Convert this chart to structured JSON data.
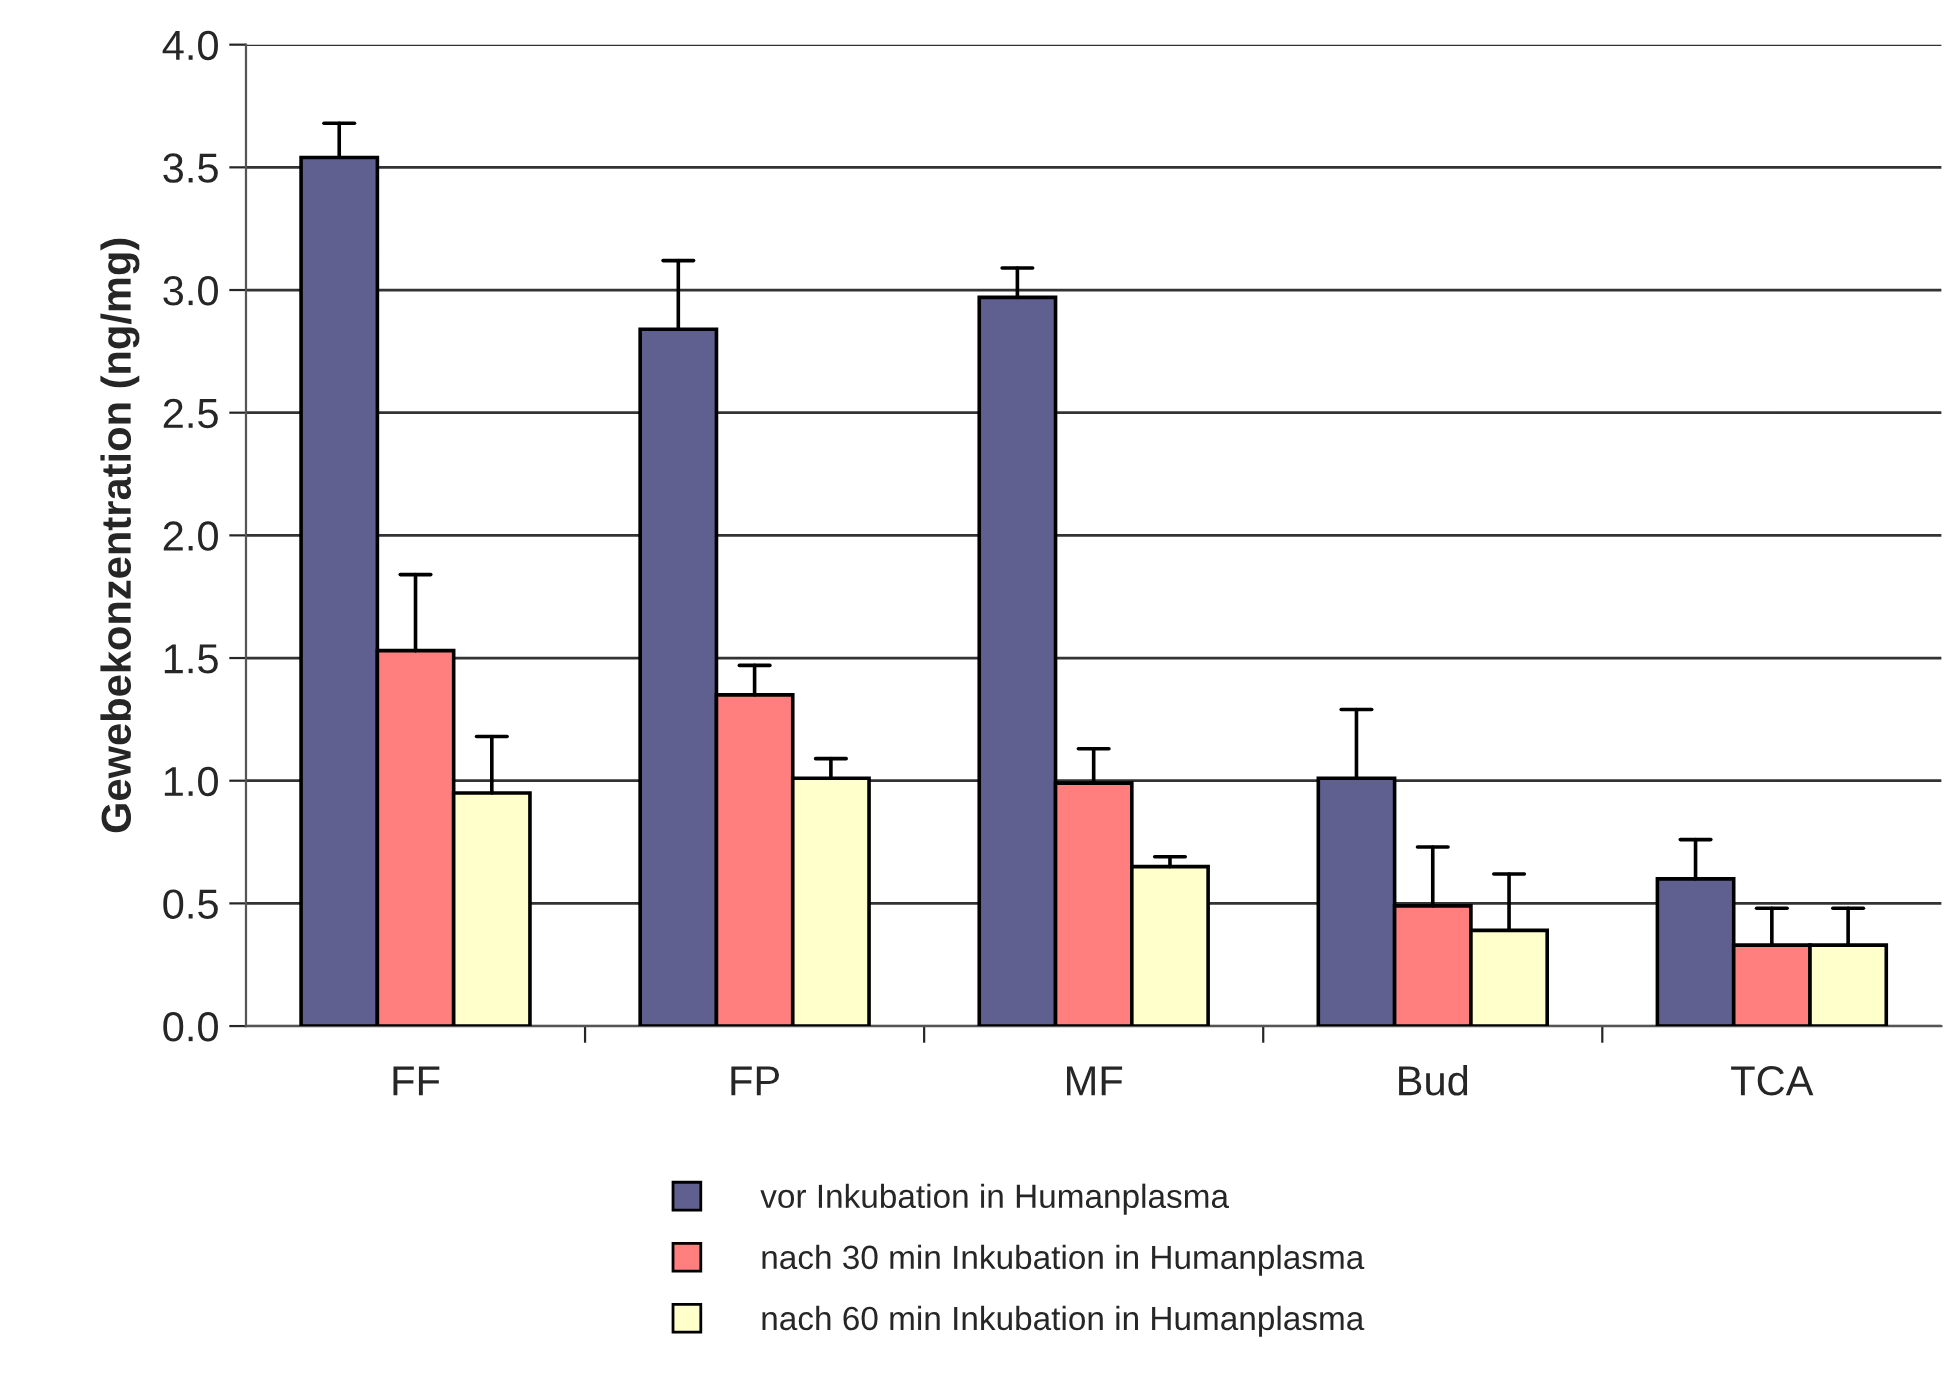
{
  "chart_data": {
    "type": "bar",
    "ylabel": "Gewebekonzentration (ng/mg)",
    "categories": [
      "FF",
      "FP",
      "MF",
      "Bud",
      "TCA"
    ],
    "series": [
      {
        "name": "vor Inkubation in Humanplasma",
        "color": "#606090",
        "values": [
          3.54,
          2.84,
          2.97,
          1.01,
          0.6
        ],
        "errors": [
          [
            3.54,
            3.68
          ],
          [
            2.84,
            3.12
          ],
          [
            2.97,
            3.09
          ],
          [
            1.01,
            1.29
          ],
          [
            0.6,
            0.76
          ]
        ]
      },
      {
        "name": "nach 30 min Inkubation in Humanplasma",
        "color": "#ff7f7f",
        "values": [
          1.53,
          1.35,
          0.99,
          0.49,
          0.33
        ],
        "errors": [
          [
            1.53,
            1.84
          ],
          [
            1.35,
            1.47
          ],
          [
            0.99,
            1.13
          ],
          [
            0.49,
            0.73
          ],
          [
            0.33,
            0.48
          ]
        ]
      },
      {
        "name": "nach 60 min Inkubation in Humanplasma",
        "color": "#ffffcc",
        "values": [
          0.95,
          1.01,
          0.65,
          0.39,
          0.33
        ],
        "errors": [
          [
            0.95,
            1.18
          ],
          [
            1.01,
            1.09
          ],
          [
            0.65,
            0.69
          ],
          [
            0.39,
            0.62
          ],
          [
            0.33,
            0.48
          ]
        ]
      }
    ],
    "ylim": [
      0,
      4
    ],
    "yticks": [
      {
        "value": 0,
        "label": "0.0"
      },
      {
        "value": 0.5,
        "label": "0.5"
      },
      {
        "value": 1,
        "label": "1.0"
      },
      {
        "value": 1.5,
        "label": "1.5"
      },
      {
        "value": 2,
        "label": "2.0"
      },
      {
        "value": 2.5,
        "label": "2.5"
      },
      {
        "value": 3,
        "label": "3.0"
      },
      {
        "value": 3.5,
        "label": "3.5"
      },
      {
        "value": 4,
        "label": "4.0"
      }
    ],
    "grid": "y",
    "legend": "bottom",
    "marker": "square"
  }
}
